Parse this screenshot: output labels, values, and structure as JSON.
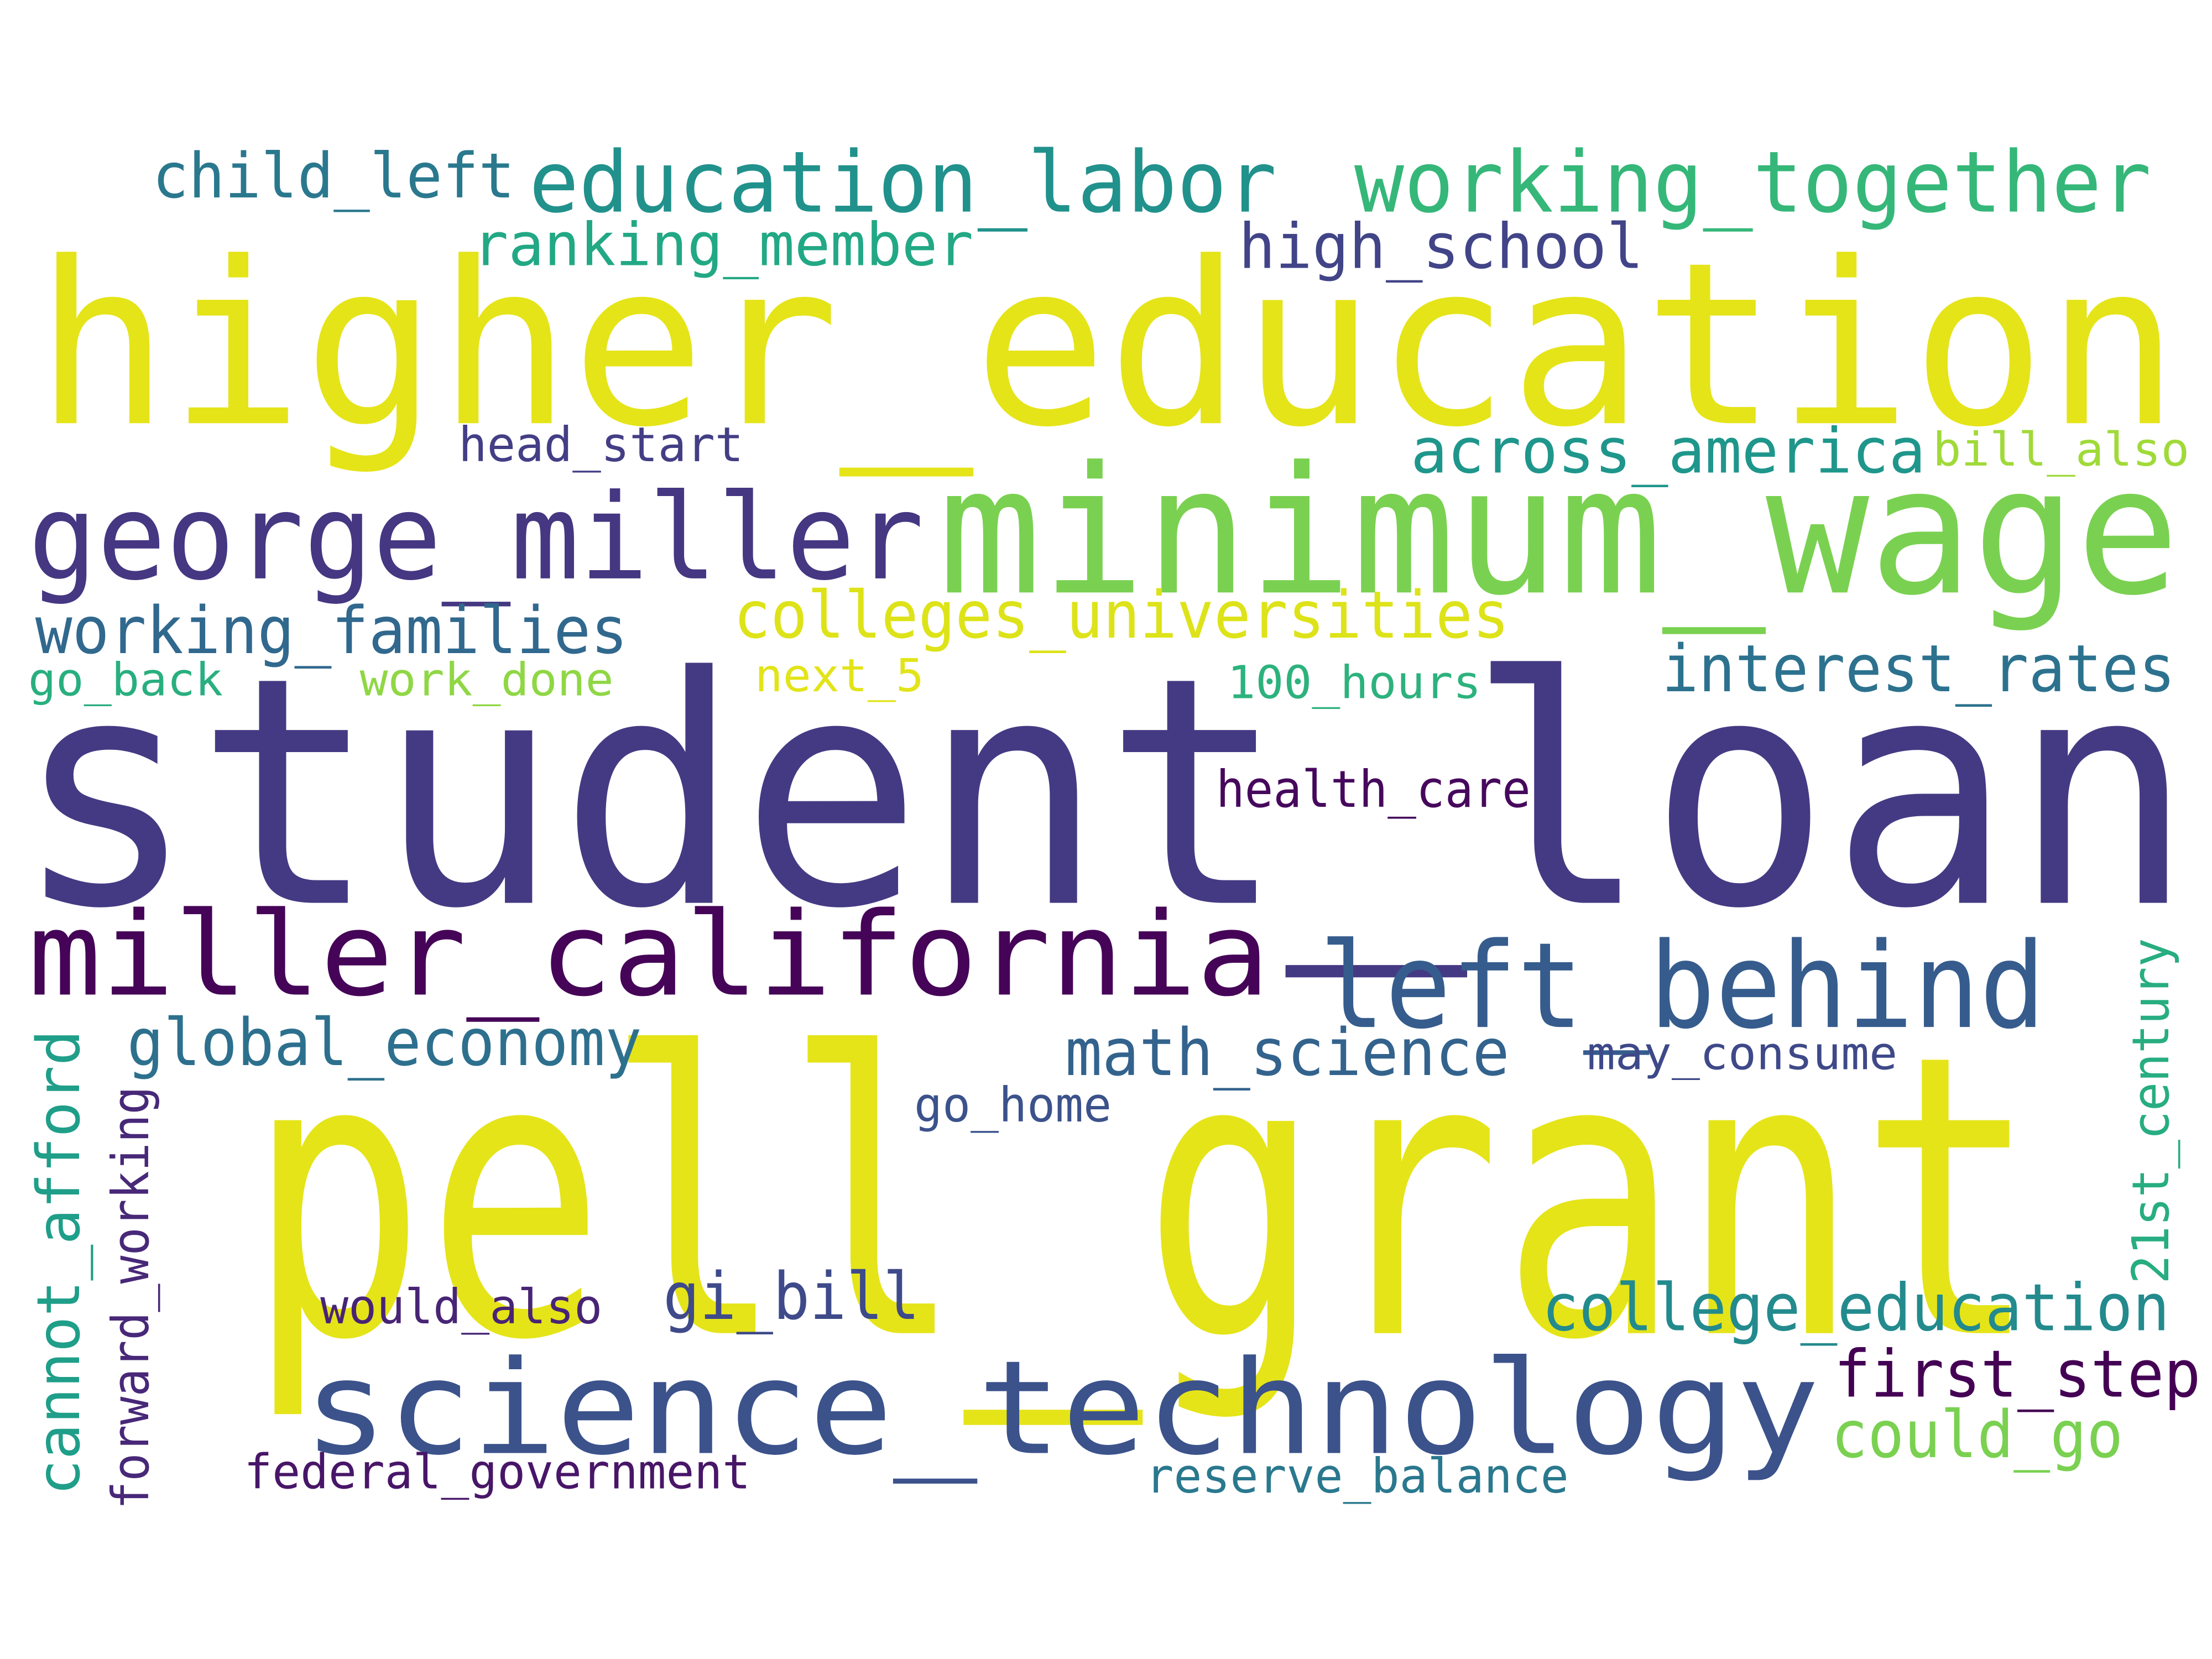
{
  "words": [
    {
      "text": "higher_education",
      "color": "#e5e419"
    },
    {
      "text": "student_loan",
      "color": "#443a83"
    },
    {
      "text": "pell_grant",
      "color": "#e5e419"
    },
    {
      "text": "minimum_wage",
      "color": "#7ad151"
    },
    {
      "text": "george_miller",
      "color": "#453781"
    },
    {
      "text": "miller_california",
      "color": "#450457"
    },
    {
      "text": "science_technology",
      "color": "#3b528b"
    },
    {
      "text": "left_behind",
      "color": "#365c8d"
    },
    {
      "text": "education_labor",
      "color": "#21918c"
    },
    {
      "text": "working_together",
      "color": "#35b779"
    },
    {
      "text": "child_left",
      "color": "#2a788e"
    },
    {
      "text": "ranking_member",
      "color": "#22a884"
    },
    {
      "text": "high_school",
      "color": "#414487"
    },
    {
      "text": "head_start",
      "color": "#433e85"
    },
    {
      "text": "across_america",
      "color": "#1f968b"
    },
    {
      "text": "bill_also",
      "color": "#a0da39"
    },
    {
      "text": "working_families",
      "color": "#31688e"
    },
    {
      "text": "colleges_universities",
      "color": "#dde318"
    },
    {
      "text": "go_back",
      "color": "#29af7f"
    },
    {
      "text": "work_done",
      "color": "#8fd744"
    },
    {
      "text": "next_5",
      "color": "#e2e418"
    },
    {
      "text": "100_hours",
      "color": "#2db27d"
    },
    {
      "text": "interest_rates",
      "color": "#2c728e"
    },
    {
      "text": "health_care",
      "color": "#46085c"
    },
    {
      "text": "global_economy",
      "color": "#2d708e"
    },
    {
      "text": "math_science",
      "color": "#33638d"
    },
    {
      "text": "may_consume",
      "color": "#3e4989"
    },
    {
      "text": "go_home",
      "color": "#3b528b"
    },
    {
      "text": "cannot_afford",
      "color": "#1f9e89"
    },
    {
      "text": "forward_working",
      "color": "#482878"
    },
    {
      "text": "21st_century",
      "color": "#27ad81"
    },
    {
      "text": "would_also",
      "color": "#482475"
    },
    {
      "text": "gi_bill",
      "color": "#3e4a89"
    },
    {
      "text": "college_education",
      "color": "#238a8d"
    },
    {
      "text": "first_step",
      "color": "#440154"
    },
    {
      "text": "could_go",
      "color": "#7ad151"
    },
    {
      "text": "federal_government",
      "color": "#481668"
    },
    {
      "text": "reserve_balance",
      "color": "#2a788e"
    }
  ]
}
